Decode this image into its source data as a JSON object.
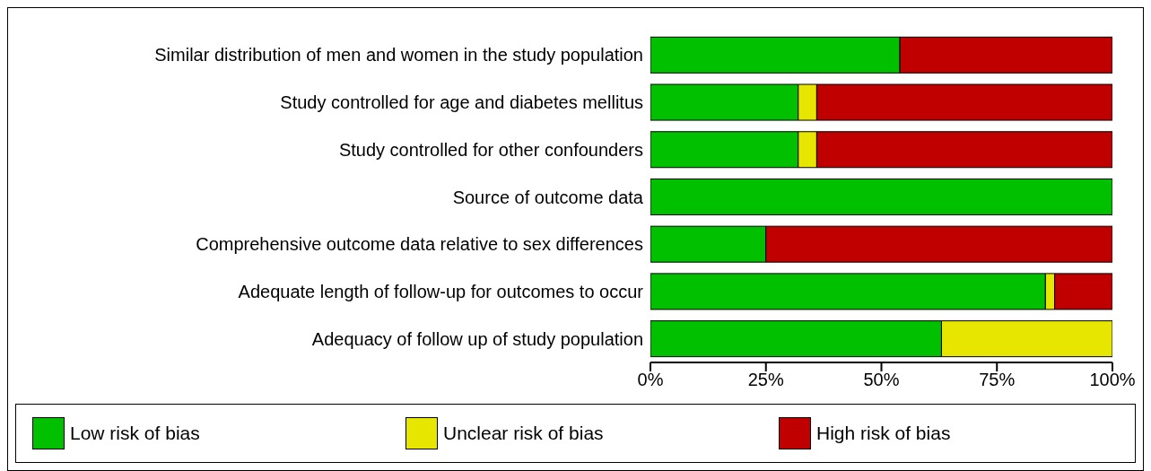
{
  "chart_data": {
    "type": "bar",
    "orientation": "horizontal",
    "stacked": true,
    "categories": [
      "Similar distribution of men and women in the study population",
      "Study controlled for age and diabetes mellitus",
      "Study controlled for other confounders",
      "Source of outcome data",
      "Comprehensive outcome data relative to sex differences",
      "Adequate length of follow-up for outcomes to occur",
      "Adequacy of follow up of study population"
    ],
    "series": [
      {
        "name": "Low risk of bias",
        "color": "#00c000",
        "values": [
          54,
          32,
          32,
          100,
          25,
          85.5,
          63
        ]
      },
      {
        "name": "Unclear risk of bias",
        "color": "#e6e600",
        "values": [
          0,
          4,
          4,
          0,
          0,
          2,
          37
        ]
      },
      {
        "name": "High risk of bias",
        "color": "#c00000",
        "values": [
          46,
          64,
          64,
          0,
          75,
          12.5,
          0
        ]
      }
    ],
    "xlim": [
      0,
      100
    ],
    "xticks": [
      {
        "value": 0,
        "label": "0%"
      },
      {
        "value": 25,
        "label": "25%"
      },
      {
        "value": 50,
        "label": "50%"
      },
      {
        "value": 75,
        "label": "75%"
      },
      {
        "value": 100,
        "label": "100%"
      }
    ],
    "legend": "bottom",
    "grid": false
  }
}
